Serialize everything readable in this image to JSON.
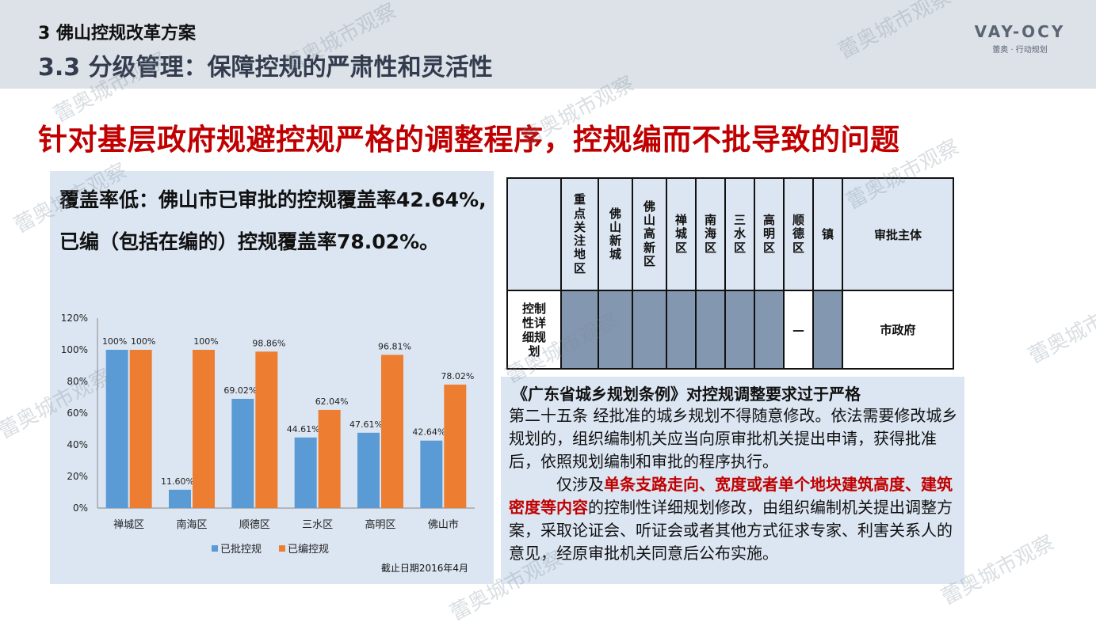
{
  "header": {
    "section": "3 佛山控规改革方案",
    "subtitle": "3.3 分级管理：保障控规的严肃性和灵活性",
    "logo_mark": "VAY-OCY",
    "logo_sub": "蕾奥 · 行动规划"
  },
  "headline": "针对基层政府规避控规严格的调整程序，控规编而不批导致的问题",
  "coverage_text": "覆盖率低：佛山市已审批的控规覆盖率42.64%,已编（包括在编的）控规覆盖率78.02%。",
  "chart_data": {
    "type": "bar",
    "categories": [
      "禅城区",
      "南海区",
      "顺德区",
      "三水区",
      "高明区",
      "佛山市"
    ],
    "series": [
      {
        "name": "已批控规",
        "values": [
          100,
          11.6,
          69.02,
          44.61,
          47.61,
          42.64
        ],
        "labels": [
          "100%",
          "11.60%",
          "69.02%",
          "44.61%",
          "47.61%",
          "42.64%"
        ],
        "color": "#5b9bd5"
      },
      {
        "name": "已编控规",
        "values": [
          100,
          100,
          98.86,
          62.04,
          96.81,
          78.02
        ],
        "labels": [
          "100%",
          "100%",
          "98.86%",
          "62.04%",
          "96.81%",
          "78.02%"
        ],
        "color": "#ed7d31"
      }
    ],
    "ylim": [
      0,
      120
    ],
    "yticks": [
      "0%",
      "20%",
      "40%",
      "60%",
      "80%",
      "100%",
      "120%"
    ],
    "legend_position": "bottom",
    "grid": false
  },
  "chart_note": "截止日期2016年4月",
  "table": {
    "headers": [
      "",
      "重点关注地区",
      "佛山新城",
      "佛山高新区",
      "禅城区",
      "南海区",
      "三水区",
      "高明区",
      "顺德区",
      "镇",
      "审批主体"
    ],
    "row_label": "控制性详细规划",
    "row_dash": "—",
    "row_authority": "市政府"
  },
  "regulation": {
    "title": "《广东省城乡规划条例》对控规调整要求过于严格",
    "para1": "第二十五条 经批准的城乡规划不得随意修改。依法需要修改城乡规划的，组织编制机关应当向原审批机关提出申请，获得批准后，依照规划编制和审批的程序执行。",
    "para2_prefix": "仅涉及",
    "para2_highlight": "单条支路走向、宽度或者单个地块建筑高度、建筑密度等内容",
    "para2_suffix": "的控制性详细规划修改，由组织编制机关提出调整方案，采取论证会、听证会或者其他方式征求专家、利害关系人的意见，经原审批机关同意后公布实施。"
  },
  "watermark": "蕾奥城市观察"
}
